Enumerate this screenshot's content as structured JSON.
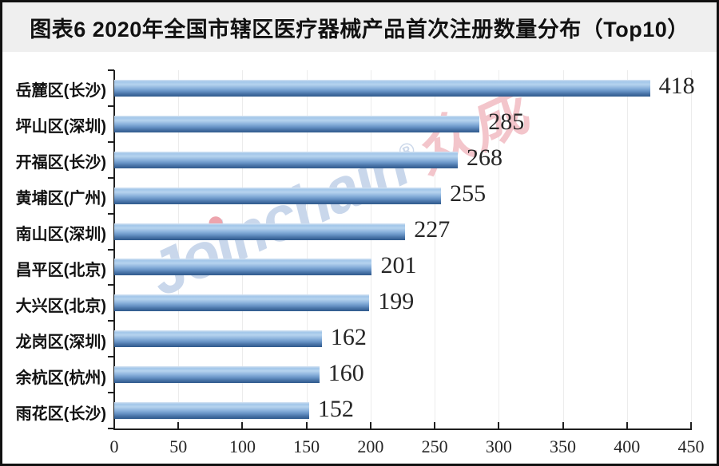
{
  "title": "图表6 2020年全国市辖区医疗器械产品首次注册数量分布（Top10）",
  "watermark": {
    "latin": "Joinchain",
    "reg": "®",
    "cjk": "众成",
    "latin_color": "#c9d7eb",
    "cjk_color": "#f3c5cb"
  },
  "colors": {
    "bar_light": "#b6d3ef",
    "bar_mid": "#6793c5",
    "bar_dark": "#2f5a8c",
    "axis": "#1f1f1f",
    "gridline": "#ececec",
    "title_band_bg": "#efefef",
    "frame_border": "#111111",
    "value_text": "#262626"
  },
  "chart_data": {
    "type": "bar",
    "orientation": "horizontal",
    "title": "图表6 2020年全国市辖区医疗器械产品首次注册数量分布（Top10）",
    "categories": [
      "岳麓区(长沙)",
      "坪山区(深圳)",
      "开福区(长沙)",
      "黄埔区(广州)",
      "南山区(深圳)",
      "昌平区(北京)",
      "大兴区(北京)",
      "龙岗区(深圳)",
      "余杭区(杭州)",
      "雨花区(长沙)"
    ],
    "values": [
      418,
      285,
      268,
      255,
      227,
      201,
      199,
      162,
      160,
      152
    ],
    "xlabel": "",
    "ylabel": "",
    "xlim": [
      0,
      450
    ],
    "x_ticks": [
      0,
      50,
      100,
      150,
      200,
      250,
      300,
      350,
      400,
      450
    ],
    "grid": "vertical-light",
    "legend": "none",
    "value_labels": "end-of-bar"
  }
}
